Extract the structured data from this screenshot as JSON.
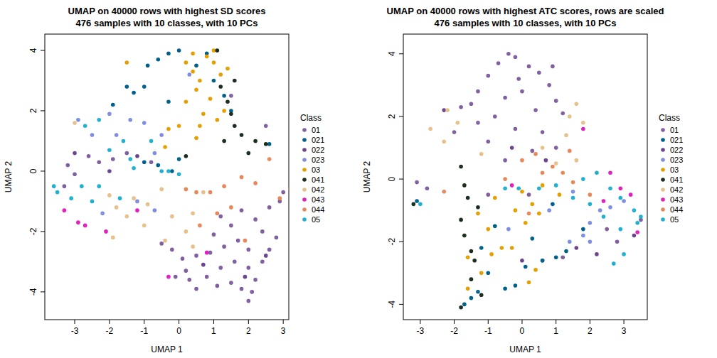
{
  "chart_data": [
    {
      "type": "scatter",
      "title": "UMAP on 40000 rows with highest SD scores",
      "subtitle": "476 samples with 10 classes, with 10 PCs",
      "x_label": "UMAP 1",
      "y_label": "UMAP 2",
      "legend_title": "Class",
      "legend": "right",
      "marker": "circle",
      "xlim": [
        -3.86,
        3.16
      ],
      "ylim": [
        -4.92,
        4.54
      ],
      "xticks": [
        -3,
        -2,
        -1,
        0,
        1,
        2,
        3
      ],
      "yticks": [
        -4,
        -2,
        0,
        2,
        4
      ],
      "series": [
        {
          "name": "01",
          "color": "#8160a0",
          "x": [
            2.0,
            2.1,
            1.8,
            2.2,
            1.5,
            1.1,
            0.8,
            0.5,
            0.3,
            1.2,
            1.6,
            2.0,
            2.4,
            2.6,
            2.8,
            2.4,
            2.0,
            1.7,
            1.3,
            0.9,
            0.5,
            0.1,
            1.0,
            1.5,
            2.2,
            2.6,
            2.9,
            3.0,
            1.8,
            1.2,
            -0.2,
            0.2,
            -0.5,
            -0.1,
            -3.0,
            -3.2,
            -2.6,
            -2.3,
            -1.9,
            -1.5,
            -0.8,
            -3.3,
            1.5,
            2.5
          ],
          "values": [
            -4.3,
            -4.0,
            -3.9,
            -3.6,
            -3.7,
            -3.8,
            -3.5,
            -3.9,
            -3.6,
            -3.2,
            -3.0,
            -3.2,
            -3.0,
            -2.6,
            -2.2,
            -2.0,
            -2.6,
            -2.3,
            -2.5,
            -2.7,
            -2.8,
            -2.9,
            -2.1,
            -1.8,
            -1.6,
            -1.2,
            -1.0,
            -0.7,
            -1.3,
            -1.5,
            -2.6,
            -3.3,
            -2.4,
            -3.5,
            -0.1,
            0.2,
            0.5,
            0.3,
            0.4,
            0.6,
            0.3,
            -0.5,
            2.5,
            1.5
          ]
        },
        {
          "name": "021",
          "color": "#00628c",
          "x": [
            -1.5,
            -1.3,
            -1.0,
            -0.9,
            -0.6,
            -0.3,
            0.0,
            0.5,
            1.0,
            1.3,
            -1.9,
            -0.3,
            0.8,
            -1.0,
            -0.6,
            -0.2,
            2.6,
            1.5,
            0.0
          ],
          "values": [
            2.8,
            2.6,
            2.8,
            3.5,
            3.7,
            3.9,
            4.0,
            3.5,
            3.0,
            2.5,
            2.2,
            2.3,
            3.9,
            0.3,
            0.2,
            0.0,
            0.9,
            2.0,
            0.4
          ]
        },
        {
          "name": "022",
          "color": "#6b4590",
          "x": [
            1.9,
            2.5,
            0.7,
            -1.2,
            -2.0,
            -3.0
          ],
          "values": [
            -3.5,
            -2.8,
            -3.1,
            0.5,
            0.0,
            0.6
          ]
        },
        {
          "name": "023",
          "color": "#7f8ee0",
          "x": [
            -2.9,
            -2.0,
            -1.4,
            -1.0,
            -0.5,
            -0.7,
            -2.5,
            -1.8,
            -1.2,
            -2.2,
            0.3,
            -0.7
          ],
          "values": [
            1.7,
            1.9,
            1.7,
            1.6,
            1.2,
            0.6,
            1.2,
            1.2,
            -1.0,
            -1.4,
            3.2,
            -1.3
          ]
        },
        {
          "name": "03",
          "color": "#e69f00",
          "x": [
            0.2,
            0.4,
            0.6,
            0.8,
            1.0,
            1.2,
            0.5,
            0.9,
            1.3,
            0.7,
            0.2,
            0.4,
            1.0,
            1.4,
            0.0,
            -0.3,
            0.6,
            -1.5,
            -0.4,
            0.5,
            1.1
          ],
          "values": [
            3.6,
            3.3,
            3.0,
            3.8,
            3.6,
            3.2,
            2.7,
            2.4,
            2.0,
            1.9,
            2.3,
            3.9,
            4.0,
            3.4,
            1.5,
            1.4,
            1.5,
            3.6,
            0.8,
            1.1,
            1.7
          ]
        },
        {
          "name": "041",
          "color": "#1b2e1f",
          "x": [
            1.2,
            1.4,
            1.5,
            1.6,
            1.8,
            2.2,
            2.5,
            2.0,
            1.3,
            0.2,
            1.1,
            1.6
          ],
          "values": [
            2.8,
            2.3,
            1.9,
            1.5,
            1.2,
            1.0,
            0.9,
            0.6,
            1.0,
            0.5,
            4.0,
            3.0
          ]
        },
        {
          "name": "042",
          "color": "#e8c08a",
          "x": [
            -2.0,
            -1.8,
            -1.5,
            -1.3,
            -0.9,
            -0.5,
            -0.2,
            0.2,
            0.4,
            0.7,
            -1.0,
            -1.9,
            -3.0,
            0.4,
            -0.4
          ],
          "values": [
            -0.8,
            -1.2,
            -1.5,
            -0.9,
            -1.1,
            -0.6,
            -1.5,
            -2.0,
            -1.4,
            -0.7,
            -1.8,
            -2.2,
            1.6,
            -2.5,
            -2.3
          ]
        },
        {
          "name": "043",
          "color": "#e020c0",
          "x": [
            -3.3,
            -2.9,
            -2.7,
            -2.1,
            -0.3,
            -1.2,
            0.8
          ],
          "values": [
            -1.3,
            -1.7,
            -1.8,
            -2.0,
            -3.5,
            -1.3,
            -2.7
          ]
        },
        {
          "name": "044",
          "color": "#e8885a",
          "x": [
            0.2,
            0.5,
            0.9,
            1.3,
            1.8,
            2.2,
            1.5,
            1.9,
            0.6,
            3.2,
            2.9,
            1.1,
            2.6
          ],
          "values": [
            -0.6,
            -0.7,
            -0.7,
            -0.5,
            -0.2,
            -0.4,
            -1.2,
            -2.3,
            -1.8,
            -0.6,
            -0.9,
            -1.4,
            0.4
          ]
        },
        {
          "name": "05",
          "color": "#20b0d0",
          "x": [
            -3.6,
            -3.5,
            -3.1,
            -2.8,
            -2.3,
            -2.7,
            -2.3,
            -2.0,
            -1.6,
            -1.3,
            -0.8,
            -0.5,
            -0.3,
            0.0,
            -1.7,
            -2.5,
            -1.4
          ],
          "values": [
            -0.5,
            -0.7,
            -0.9,
            -0.5,
            -0.5,
            1.5,
            1.7,
            0.7,
            1.0,
            0.1,
            1.0,
            0.0,
            0.0,
            -0.1,
            -0.9,
            -1.0,
            0.4
          ]
        }
      ]
    },
    {
      "type": "scatter",
      "title": "UMAP on 40000 rows with highest ATC scores, rows are scaled",
      "subtitle": "476 samples with 10 classes, with 10 PCs",
      "x_label": "UMAP 1",
      "y_label": "UMAP 2",
      "legend_title": "Class",
      "legend": "right",
      "marker": "circle",
      "xlim": [
        -3.5,
        3.69
      ],
      "ylim": [
        -4.49,
        4.63
      ],
      "xticks": [
        -3,
        -2,
        -1,
        0,
        1,
        2,
        3
      ],
      "yticks": [
        -4,
        -2,
        0,
        2,
        4
      ],
      "series": [
        {
          "name": "01",
          "color": "#8160a0",
          "x": [
            -0.7,
            -0.4,
            -0.2,
            0.2,
            0.5,
            0.8,
            1.0,
            1.2,
            -1.0,
            -1.3,
            -1.5,
            -1.8,
            -2.0,
            -0.8,
            -0.5,
            0.0,
            0.4,
            -0.2,
            0.6,
            -1.0,
            0.3,
            -0.5,
            1.0,
            -1.3,
            0.9,
            -0.1,
            -3.1,
            -2.8,
            1.2,
            0.6,
            2.8,
            3.5,
            2.5,
            -1.0,
            0.2
          ],
          "values": [
            3.7,
            4.0,
            3.9,
            3.6,
            3.4,
            3.0,
            2.5,
            2.1,
            3.3,
            2.8,
            2.4,
            2.3,
            1.5,
            2.0,
            2.6,
            2.8,
            2.2,
            1.6,
            1.5,
            1.2,
            0.9,
            0.6,
            1.0,
            1.8,
            3.6,
            3.2,
            -0.1,
            -0.3,
            -2.5,
            -2.6,
            -2.0,
            -1.3,
            -1.6,
            -0.5,
            -0.5
          ]
        },
        {
          "name": "021",
          "color": "#00628c",
          "x": [
            -1.7,
            -1.5,
            -1.3,
            -1.0,
            -0.5,
            -0.2,
            0.1,
            0.6,
            1.0,
            1.3,
            -0.8,
            0.9,
            1.8,
            -3.1,
            0.3,
            -1.2
          ],
          "values": [
            -4.0,
            -3.8,
            -3.6,
            -3.0,
            -3.5,
            -3.4,
            -2.8,
            -2.6,
            -2.5,
            -2.3,
            -1.5,
            -0.8,
            -1.6,
            -0.7,
            -1.9,
            -2.2
          ]
        },
        {
          "name": "022",
          "color": "#6b4590",
          "x": [
            3.3,
            2.2,
            1.6,
            0.0,
            -0.3,
            0.7,
            -2.3
          ],
          "values": [
            -1.8,
            -2.4,
            -2.2,
            -2.6,
            1.0,
            0.6,
            2.2
          ]
        },
        {
          "name": "023",
          "color": "#7f8ee0",
          "x": [
            1.4,
            1.8,
            2.0,
            2.3,
            2.6,
            3.0,
            2.0,
            0.8,
            -0.4,
            1.5
          ],
          "values": [
            -2.0,
            -1.8,
            -1.4,
            -1.0,
            -0.9,
            -0.7,
            -2.0,
            -1.0,
            -1.6,
            -0.4
          ]
        },
        {
          "name": "03",
          "color": "#e69f00",
          "x": [
            -1.6,
            -1.2,
            -0.9,
            -0.6,
            -0.3,
            -1.0,
            -0.2,
            0.1,
            0.3,
            0.5,
            0.2,
            -1.6,
            -0.8,
            0.0,
            0.6,
            -1.3,
            0.4,
            1.1
          ],
          "values": [
            -3.5,
            -3.0,
            -2.4,
            -2.2,
            -2.2,
            -1.6,
            -1.0,
            -1.4,
            -0.8,
            -1.1,
            -3.3,
            -2.5,
            -0.6,
            -0.4,
            -0.2,
            -1.1,
            -2.9,
            -0.5
          ]
        },
        {
          "name": "041",
          "color": "#1b2e1f",
          "x": [
            -1.8,
            -1.7,
            -1.6,
            -1.8,
            -1.7,
            -1.5,
            -1.4,
            -1.5,
            -1.8,
            -3.2,
            -1.2,
            -1.3
          ],
          "values": [
            0.4,
            -0.2,
            -0.6,
            -1.3,
            -1.8,
            -2.3,
            -2.6,
            -3.2,
            -4.1,
            -0.8,
            -3.7,
            -0.9
          ]
        },
        {
          "name": "042",
          "color": "#e8c08a",
          "x": [
            -2.7,
            -2.2,
            -1.9,
            -2.3,
            1.4,
            1.6,
            1.8,
            1.3,
            1.0,
            1.6,
            -1.2,
            0.6,
            2.2
          ],
          "values": [
            1.6,
            2.2,
            1.8,
            1.2,
            2.0,
            2.4,
            1.8,
            1.4,
            0.5,
            0.6,
            0.8,
            1.0,
            0.2
          ]
        },
        {
          "name": "043",
          "color": "#e020c0",
          "x": [
            1.8,
            2.6,
            2.9,
            3.2,
            2.4,
            3.4,
            -0.3
          ],
          "values": [
            1.6,
            0.2,
            -0.3,
            -0.5,
            -0.7,
            -1.7,
            -0.2
          ]
        },
        {
          "name": "044",
          "color": "#e8885a",
          "x": [
            0.0,
            0.4,
            0.9,
            1.2,
            1.5,
            -0.5,
            0.2,
            0.6,
            1.4,
            -2.3,
            2.0
          ],
          "values": [
            0.6,
            0.8,
            0.4,
            0.2,
            -0.1,
            0.0,
            -1.1,
            0.2,
            0.9,
            -0.4,
            -0.5
          ]
        },
        {
          "name": "05",
          "color": "#20b0d0",
          "x": [
            2.2,
            2.6,
            2.9,
            3.3,
            3.5,
            3.4,
            2.9,
            2.4,
            2.0,
            1.5,
            1.0,
            0.5,
            -0.1,
            -0.5,
            -3.0,
            2.7,
            3.0,
            1.8
          ],
          "values": [
            0.2,
            -0.3,
            -0.6,
            -1.0,
            -1.2,
            -1.4,
            -1.6,
            -1.2,
            -0.8,
            -0.6,
            -0.2,
            -0.3,
            -0.3,
            -0.3,
            -0.8,
            -2.7,
            -2.4,
            0.0
          ]
        }
      ]
    }
  ]
}
